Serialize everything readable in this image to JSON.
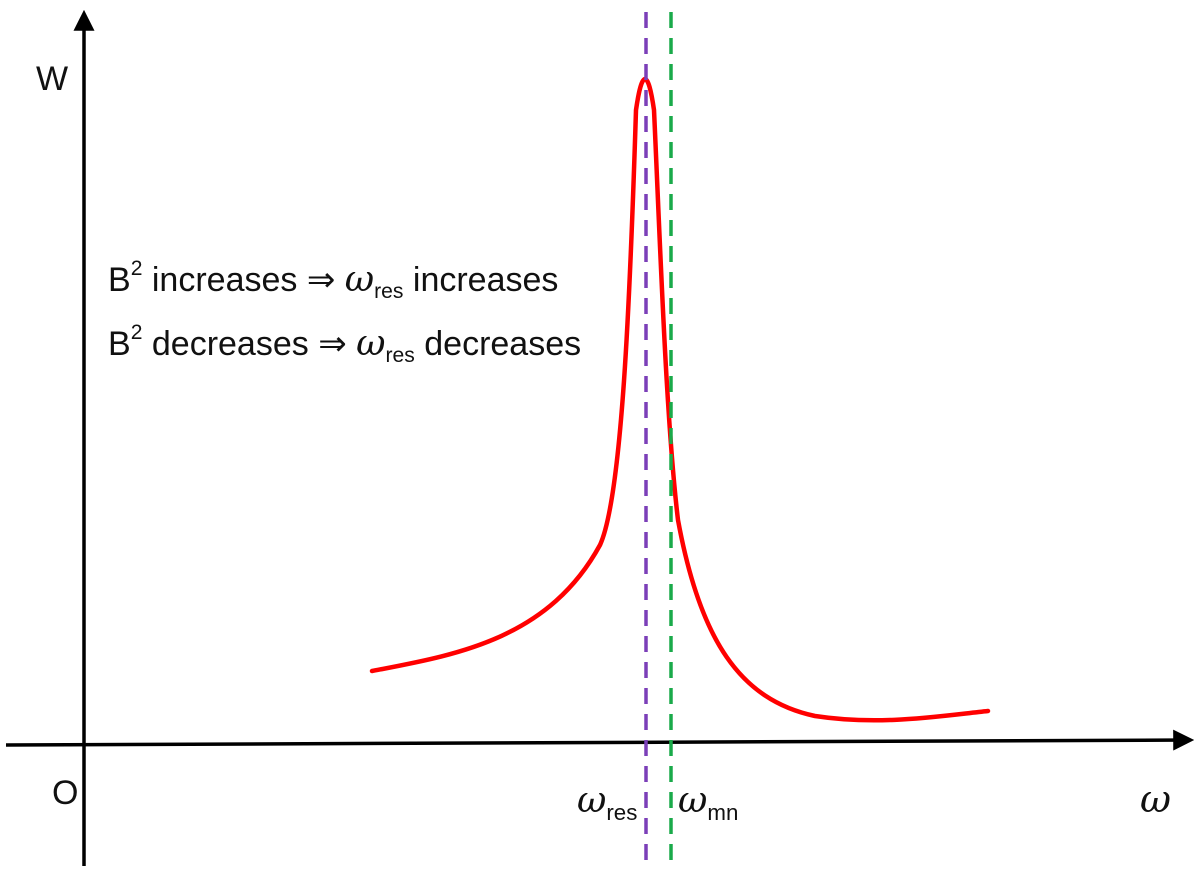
{
  "axes": {
    "y_label": "W",
    "x_label": "ω",
    "origin_label": "O"
  },
  "markers": {
    "res": {
      "symbol": "ω",
      "subscript": "res",
      "color": "#7b3fb8"
    },
    "mn": {
      "symbol": "ω",
      "subscript": "mn",
      "color": "#1aaa4a"
    }
  },
  "curve": {
    "color": "#ff0000",
    "description": "resonance peak"
  },
  "notes": [
    {
      "base": "B",
      "sup": "2",
      "verb": "increases",
      "arrow": "⇒",
      "symbol": "ω",
      "subscript": "res",
      "result": "increases"
    },
    {
      "base": "B",
      "sup": "2",
      "verb": "decreases",
      "arrow": "⇒",
      "symbol": "ω",
      "subscript": "res",
      "result": "decreases"
    }
  ]
}
